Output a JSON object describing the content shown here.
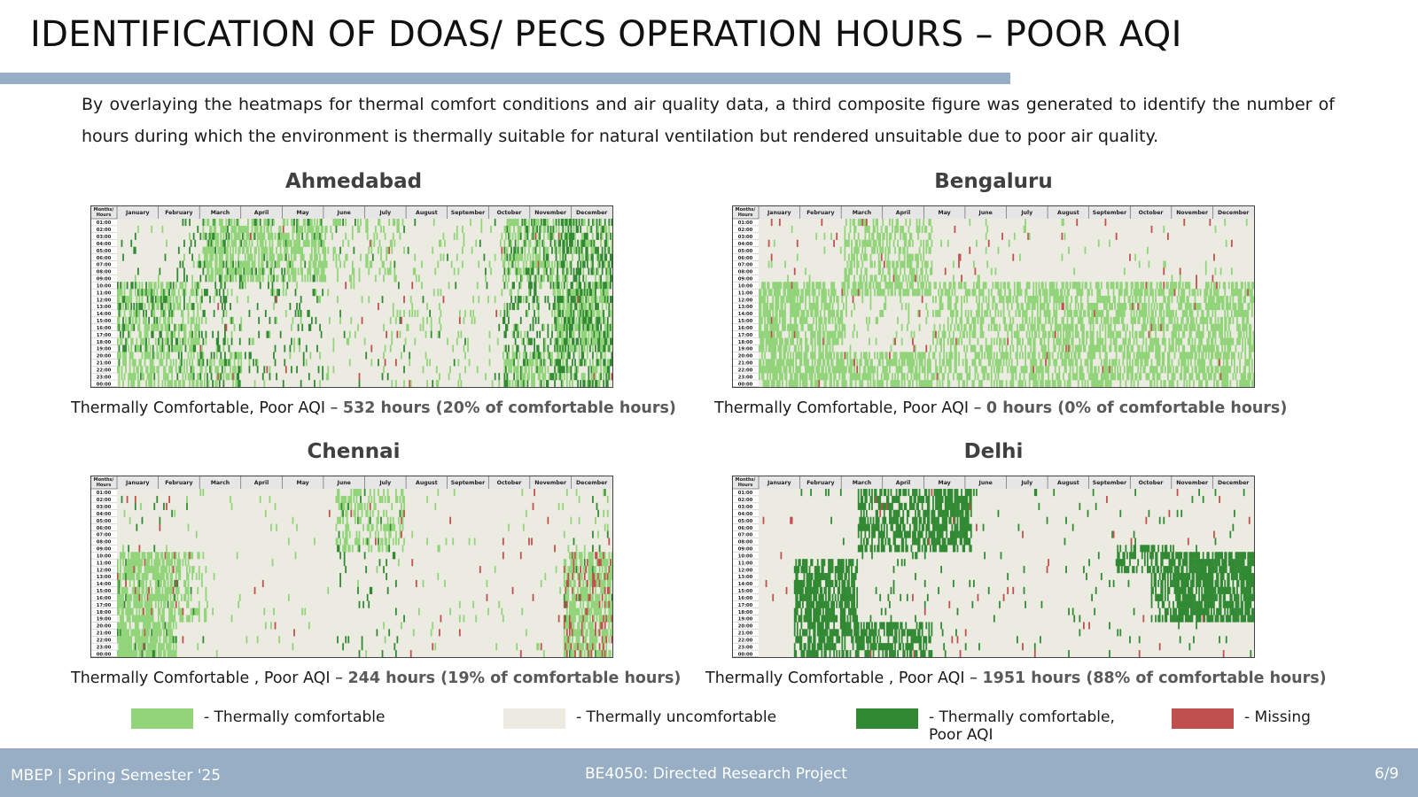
{
  "slide": {
    "title": "IDENTIFICATION OF DOAS/ PECS OPERATION HOURS – POOR AQI",
    "intro": "By overlaying the heatmaps for thermal comfort conditions and air quality data, a third composite figure was generated to identify the number of hours during which the environment is thermally suitable for natural ventilation but rendered unsuitable due to poor air quality."
  },
  "colors": {
    "comfortable": "#92d47a",
    "uncomfortable": "#ecebe2",
    "comfortable_poor_aqi": "#318a33",
    "missing": "#c0504d",
    "accent_bar": "#97aec4"
  },
  "chart_data": [
    {
      "type": "heatmap",
      "title": "Ahmedabad",
      "corner_label": "Months/ Hours",
      "x_categories": [
        "January",
        "February",
        "March",
        "April",
        "May",
        "June",
        "July",
        "August",
        "September",
        "October",
        "November",
        "December"
      ],
      "y_categories": [
        "01:00",
        "02:00",
        "03:00",
        "04:00",
        "05:00",
        "06:00",
        "07:00",
        "08:00",
        "09:00",
        "10:00",
        "11:00",
        "12:00",
        "13:00",
        "14:00",
        "15:00",
        "16:00",
        "17:00",
        "18:00",
        "19:00",
        "20:00",
        "21:00",
        "22:00",
        "23:00",
        "00:00"
      ],
      "caption_prefix": "Thermally Comfortable, Poor AQI – ",
      "caption_value": "532 hours (20% of comfortable hours)",
      "hours_comfortable_poor_aqi": 532,
      "percent_of_comfortable": 20
    },
    {
      "type": "heatmap",
      "title": "Bengaluru",
      "corner_label": "Months/ Hours",
      "x_categories": [
        "January",
        "February",
        "March",
        "April",
        "May",
        "June",
        "July",
        "August",
        "September",
        "October",
        "November",
        "December"
      ],
      "y_categories": [
        "01:00",
        "02:00",
        "03:00",
        "04:00",
        "05:00",
        "06:00",
        "07:00",
        "08:00",
        "09:00",
        "10:00",
        "11:00",
        "12:00",
        "13:00",
        "14:00",
        "15:00",
        "16:00",
        "17:00",
        "18:00",
        "19:00",
        "20:00",
        "21:00",
        "22:00",
        "23:00",
        "00:00"
      ],
      "caption_prefix": "Thermally Comfortable, Poor AQI – ",
      "caption_value": "0 hours (0% of comfortable hours)",
      "hours_comfortable_poor_aqi": 0,
      "percent_of_comfortable": 0
    },
    {
      "type": "heatmap",
      "title": "Chennai",
      "corner_label": "Months/ Hours",
      "x_categories": [
        "January",
        "February",
        "March",
        "April",
        "May",
        "June",
        "July",
        "August",
        "September",
        "October",
        "November",
        "December"
      ],
      "y_categories": [
        "01:00",
        "02:00",
        "03:00",
        "04:00",
        "05:00",
        "06:00",
        "07:00",
        "08:00",
        "09:00",
        "10:00",
        "11:00",
        "12:00",
        "13:00",
        "14:00",
        "15:00",
        "16:00",
        "17:00",
        "18:00",
        "19:00",
        "20:00",
        "21:00",
        "22:00",
        "23:00",
        "00:00"
      ],
      "caption_prefix": "Thermally Comfortable , Poor AQI – ",
      "caption_value": "244 hours (19% of comfortable hours)",
      "hours_comfortable_poor_aqi": 244,
      "percent_of_comfortable": 19
    },
    {
      "type": "heatmap",
      "title": "Delhi",
      "corner_label": "Months/ Hours",
      "x_categories": [
        "January",
        "February",
        "March",
        "April",
        "May",
        "June",
        "July",
        "August",
        "September",
        "October",
        "November",
        "December"
      ],
      "y_categories": [
        "01:00",
        "02:00",
        "03:00",
        "04:00",
        "05:00",
        "06:00",
        "07:00",
        "08:00",
        "09:00",
        "10:00",
        "11:00",
        "12:00",
        "13:00",
        "14:00",
        "15:00",
        "16:00",
        "17:00",
        "18:00",
        "19:00",
        "20:00",
        "21:00",
        "22:00",
        "23:00",
        "00:00"
      ],
      "caption_prefix": "Thermally Comfortable , Poor AQI – ",
      "caption_value": "1951 hours (88% of comfortable hours)",
      "hours_comfortable_poor_aqi": 1951,
      "percent_of_comfortable": 88
    }
  ],
  "legend": [
    {
      "label": "- Thermally comfortable",
      "color": "#92d47a"
    },
    {
      "label": "- Thermally uncomfortable",
      "color": "#ecebe2"
    },
    {
      "label": "- Thermally comfortable, Poor AQI",
      "color": "#318a33"
    },
    {
      "label": "- Missing",
      "color": "#c0504d"
    }
  ],
  "footer": {
    "left": "MBEP | Spring Semester '25",
    "center": "BE4050: Directed Research Project",
    "page": "6/9"
  }
}
